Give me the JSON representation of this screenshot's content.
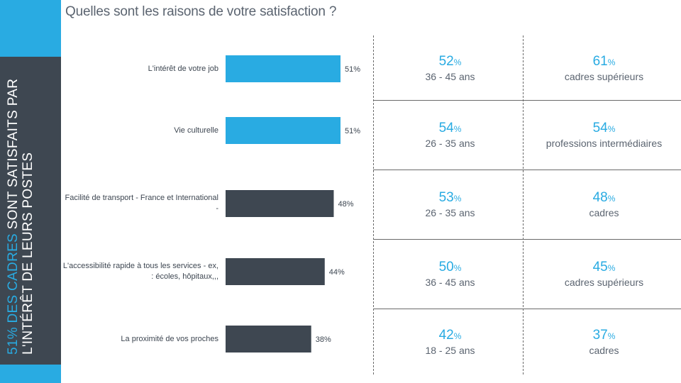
{
  "title": "Quelles sont les raisons de votre satisfaction ?",
  "side": {
    "highlight": "51% des cadres",
    "text": "sont satisfaits par l'intérêt de leurs postes"
  },
  "colors": {
    "accent": "#29abe2",
    "dark": "#3e4751"
  },
  "chart_data": {
    "type": "bar",
    "orientation": "horizontal",
    "categories": [
      "L'intérêt de votre job",
      "Vie culturelle",
      "Facilité de transport - France et International -",
      "L'accessibilité rapide à tous les services - ex, : écoles, hôpitaux,,,",
      "La proximité de vos proches"
    ],
    "values": [
      51,
      51,
      48,
      44,
      38
    ],
    "value_labels": [
      "51%",
      "51%",
      "48%",
      "44%",
      "38%"
    ],
    "bar_colors": [
      "#29abe2",
      "#29abe2",
      "#3e4751",
      "#3e4751",
      "#3e4751"
    ],
    "xlim": [
      0,
      100
    ]
  },
  "breakdown": [
    {
      "age_pct": "52",
      "age": "36 - 45 ans",
      "cat_pct": "61",
      "cat": "cadres supérieurs"
    },
    {
      "age_pct": "54",
      "age": "26 - 35 ans",
      "cat_pct": "54",
      "cat": "professions intermédiaires"
    },
    {
      "age_pct": "53",
      "age": "26 - 35 ans",
      "cat_pct": "48",
      "cat": "cadres"
    },
    {
      "age_pct": "50",
      "age": "36 - 45 ans",
      "cat_pct": "45",
      "cat": "cadres supérieurs"
    },
    {
      "age_pct": "42",
      "age": "18 - 25 ans",
      "cat_pct": "37",
      "cat": "cadres"
    }
  ],
  "percent_symbol": "%"
}
